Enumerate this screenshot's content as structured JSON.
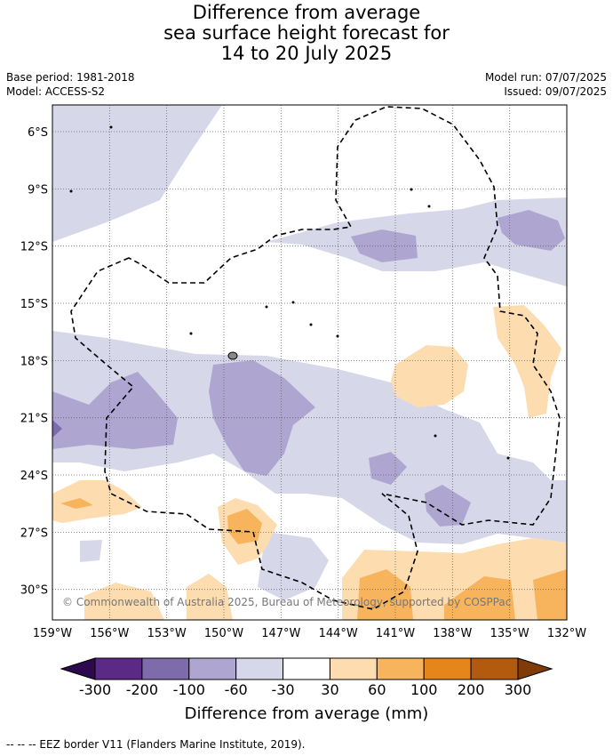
{
  "title": {
    "line1": "Difference from average",
    "line2": "sea surface height forecast for",
    "line3": "14 to 20 July 2025"
  },
  "meta": {
    "base_period": "Base period: 1981-2018",
    "model": "Model: ACCESS-S2",
    "model_run": "Model run: 07/07/2025",
    "issued": "Issued: 09/07/2025"
  },
  "map": {
    "lat_labels": [
      "6°S",
      "9°S",
      "12°S",
      "15°S",
      "18°S",
      "21°S",
      "24°S",
      "27°S",
      "30°S"
    ],
    "lat_values": [
      -6,
      -9,
      -12,
      -15,
      -18,
      -21,
      -24,
      -27,
      -30
    ],
    "lon_labels": [
      "159°W",
      "156°W",
      "153°W",
      "150°W",
      "147°W",
      "144°W",
      "141°W",
      "138°W",
      "135°W",
      "132°W"
    ],
    "lon_values": [
      -159,
      -156,
      -153,
      -150,
      -147,
      -144,
      -141,
      -138,
      -135,
      -132
    ],
    "lat_range": [
      -4.6,
      -31.6
    ],
    "lon_range": [
      -159,
      -132
    ],
    "copyright": "© Commonwealth of Australia 2025, Bureau of Meteorology, supported by COSPPac"
  },
  "colorbar": {
    "title": "Difference from average (mm)",
    "labels": [
      "-300",
      "-200",
      "-100",
      "-60",
      "-30",
      "30",
      "60",
      "100",
      "200",
      "300"
    ],
    "colors": [
      "#2d0a4e",
      "#5b2a86",
      "#7e6bab",
      "#aea6d0",
      "#d7d7ea",
      "#ffffff",
      "#fddcb0",
      "#f8b45c",
      "#e4861a",
      "#b25a0d",
      "#7f3b08"
    ]
  },
  "legend": {
    "eez": "--  --  -- EEZ border V11 (Flanders Marine Institute, 2019)."
  }
}
